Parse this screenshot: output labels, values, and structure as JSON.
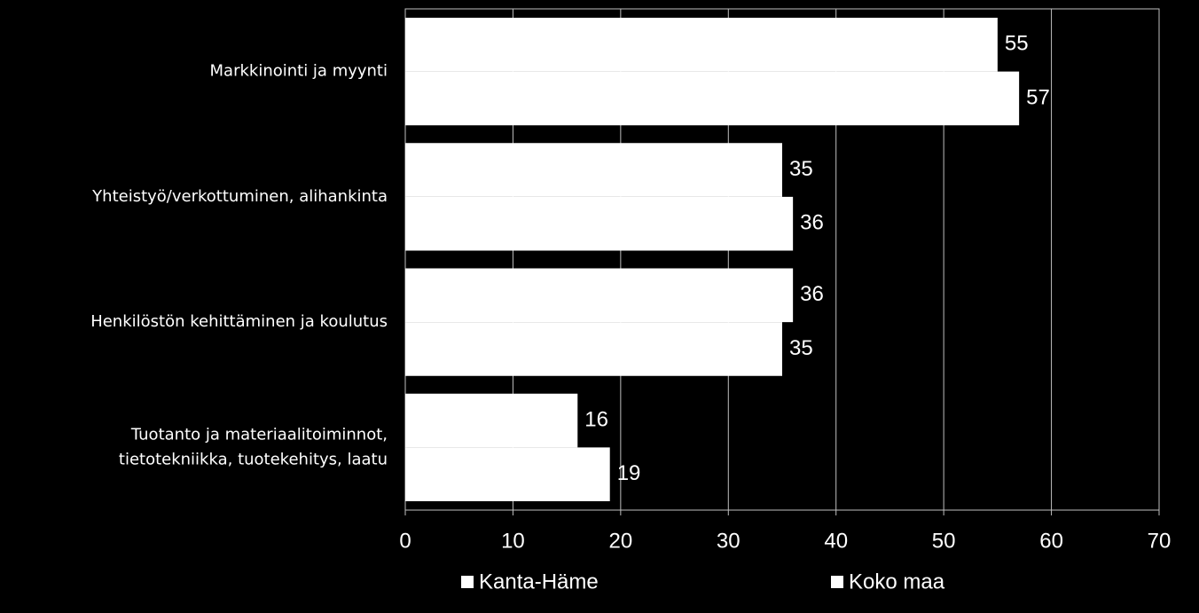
{
  "chart_data": {
    "type": "hbar",
    "categories": [
      "Markkinointi ja myynti",
      "Yhteistyö/verkottuminen, alihankinta",
      "Henkilöstön kehittäminen ja koulutus",
      "Tuotanto ja materiaalitoiminnot,\ntietotekniikka, tuotekehitys, laatu"
    ],
    "series": [
      {
        "name": "Kanta-Häme",
        "color": "#ffffff",
        "values": [
          55,
          35,
          36,
          16
        ]
      },
      {
        "name": "Koko maa",
        "color": "#ffffff",
        "values": [
          57,
          36,
          35,
          19
        ]
      }
    ],
    "xlim": [
      0,
      70
    ],
    "xticks": [
      0,
      10,
      20,
      30,
      40,
      50,
      60,
      70
    ],
    "grid": true
  }
}
